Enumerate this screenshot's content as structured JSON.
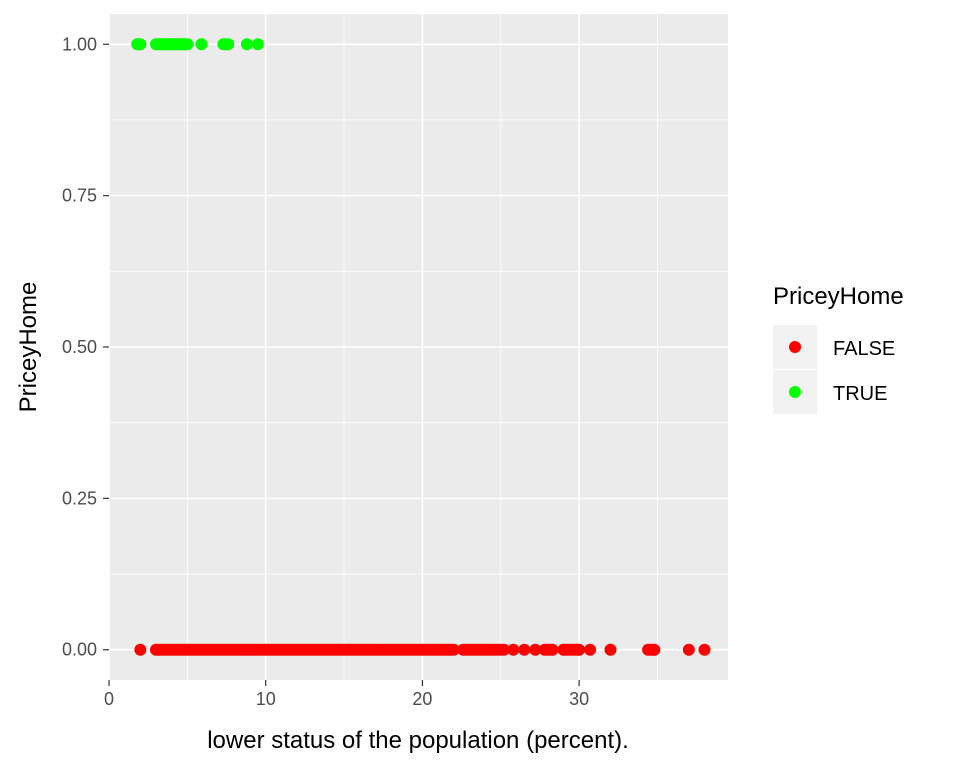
{
  "chart_data": {
    "type": "scatter",
    "title": "",
    "xlabel": "lower status of the population (percent).",
    "ylabel": "PriceyHome",
    "xlim": [
      0,
      39.5
    ],
    "ylim": [
      -0.05,
      1.05
    ],
    "x_ticks": [
      0,
      10,
      20,
      30
    ],
    "x_tick_labels": [
      "0",
      "10",
      "20",
      "30"
    ],
    "y_ticks": [
      0,
      0.25,
      0.5,
      0.75,
      1.0
    ],
    "y_tick_labels": [
      "0.00",
      "0.25",
      "0.50",
      "0.75",
      "1.00"
    ],
    "grid": true,
    "legend": {
      "title": "PriceyHome",
      "position": "right",
      "entries": [
        {
          "label": "FALSE",
          "color": "#ff0000"
        },
        {
          "label": "TRUE",
          "color": "#00ff00"
        }
      ]
    },
    "series": [
      {
        "name": "FALSE",
        "color": "#ff0000",
        "y": 0,
        "x": [
          2.0,
          3.0,
          3.5,
          4.0,
          4.5,
          5.0,
          5.5,
          6.0,
          6.5,
          7.0,
          7.5,
          8.0,
          8.5,
          9.0,
          9.5,
          10.0,
          10.5,
          11.0,
          11.5,
          12.0,
          12.5,
          13.0,
          13.5,
          14.0,
          14.5,
          15.0,
          15.5,
          16.0,
          16.5,
          17.0,
          17.5,
          18.0,
          18.5,
          19.0,
          19.5,
          20.0,
          20.5,
          21.0,
          21.5,
          22.0,
          22.6,
          23.1,
          23.6,
          24.1,
          24.6,
          25.2,
          25.8,
          26.5,
          27.2,
          27.8,
          28.3,
          29.0,
          29.5,
          30.0,
          30.7,
          32.0,
          34.4,
          34.8,
          37.0,
          38.0
        ]
      },
      {
        "name": "TRUE",
        "color": "#00ff00",
        "y": 1,
        "x": [
          1.8,
          2.0,
          3.0,
          3.3,
          3.6,
          3.9,
          4.1,
          4.4,
          4.7,
          5.0,
          5.9,
          7.3,
          7.6,
          8.8,
          9.5
        ]
      }
    ]
  }
}
